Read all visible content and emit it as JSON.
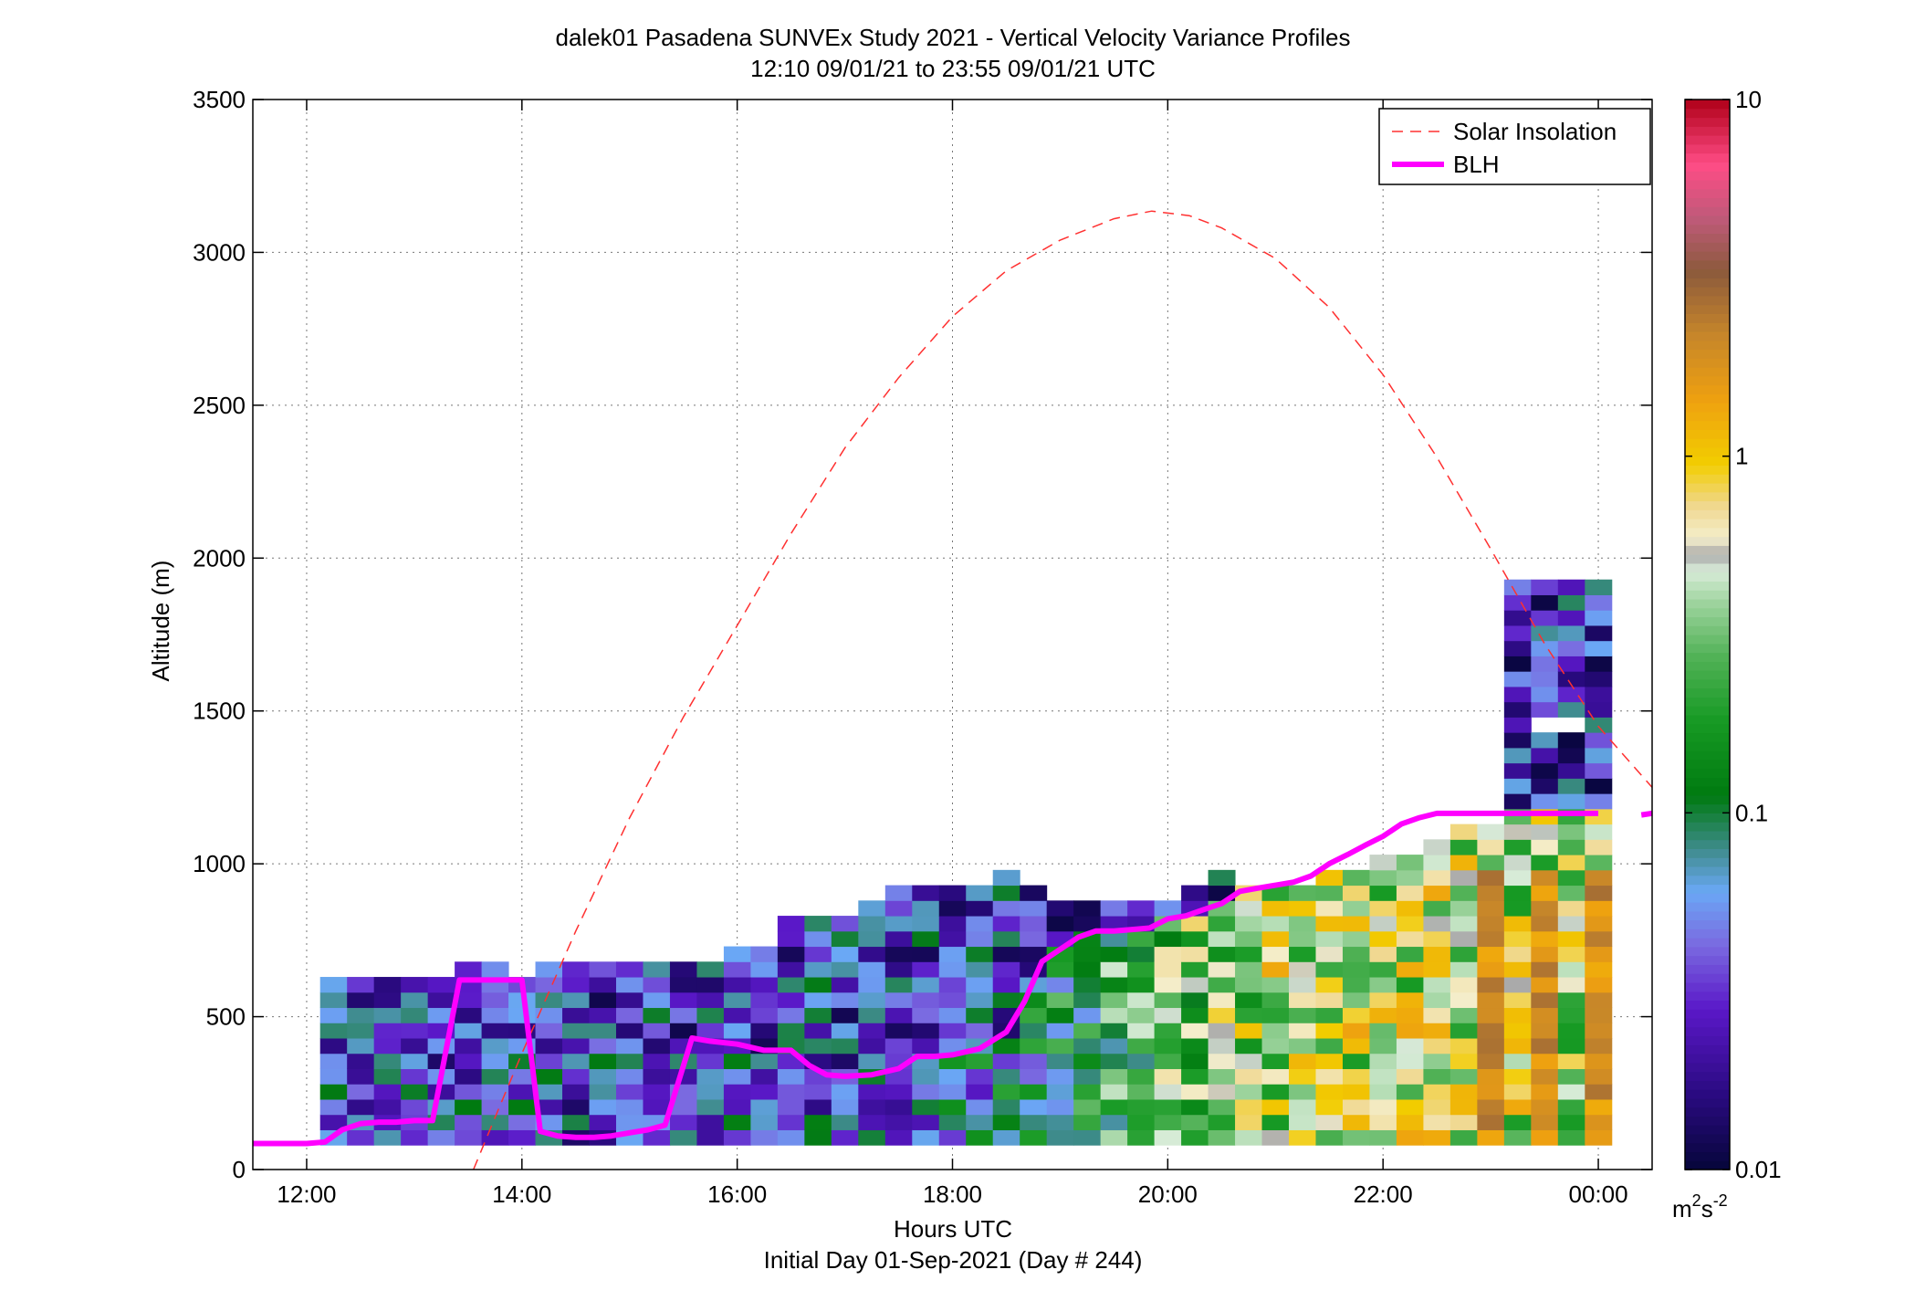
{
  "chart_data": {
    "type": "heatmap",
    "title": "dalek01 Pasadena SUNVEx Study 2021 - Vertical Velocity Variance Profiles",
    "subtitle": "12:10 09/01/21 to 23:55 09/01/21  UTC",
    "xlabel": "Hours UTC",
    "xlabel2": "Initial Day 01-Sep-2021 (Day # 244)",
    "ylabel": "Altitude (m)",
    "xlim": [
      11.5,
      24.5
    ],
    "ylim": [
      0,
      3500
    ],
    "x_ticks": [
      {
        "value": 12,
        "label": "12:00"
      },
      {
        "value": 14,
        "label": "14:00"
      },
      {
        "value": 16,
        "label": "16:00"
      },
      {
        "value": 18,
        "label": "18:00"
      },
      {
        "value": 20,
        "label": "20:00"
      },
      {
        "value": 22,
        "label": "22:00"
      },
      {
        "value": 24,
        "label": "00:00"
      }
    ],
    "y_ticks": [
      0,
      500,
      1000,
      1500,
      2000,
      2500,
      3000,
      3500
    ],
    "grid": true,
    "legend_position": "top-right",
    "legend": [
      {
        "name": "Solar Insolation",
        "style": "dashed",
        "color": "#ff3030"
      },
      {
        "name": "BLH",
        "style": "solid",
        "color": "#ff00ff"
      }
    ],
    "colorbar": {
      "scale": "log",
      "min": 0.01,
      "max": 10,
      "ticks": [
        {
          "value": 0.01,
          "label": "0.01"
        },
        {
          "value": 0.1,
          "label": "0.1"
        },
        {
          "value": 1,
          "label": "1"
        },
        {
          "value": 10,
          "label": "10"
        }
      ],
      "unit_base": "m",
      "unit_sup1": "2",
      "unit_mid": "s",
      "unit_sup2": "-2",
      "stops": [
        {
          "t": 0.0,
          "color": "#06063a"
        },
        {
          "t": 0.07,
          "color": "#2a0a80"
        },
        {
          "t": 0.15,
          "color": "#5a18c8"
        },
        {
          "t": 0.21,
          "color": "#7a6ae0"
        },
        {
          "t": 0.26,
          "color": "#6aa8f5"
        },
        {
          "t": 0.3,
          "color": "#3e8b8b"
        },
        {
          "t": 0.35,
          "color": "#007a10"
        },
        {
          "t": 0.42,
          "color": "#179a24"
        },
        {
          "t": 0.48,
          "color": "#52b257"
        },
        {
          "t": 0.53,
          "color": "#9ed49e"
        },
        {
          "t": 0.56,
          "color": "#d9ecd9"
        },
        {
          "t": 0.575,
          "color": "#aaaaaa"
        },
        {
          "t": 0.59,
          "color": "#f4eecc"
        },
        {
          "t": 0.62,
          "color": "#f0d890"
        },
        {
          "t": 0.66,
          "color": "#f2cd00"
        },
        {
          "t": 0.72,
          "color": "#eea010"
        },
        {
          "t": 0.78,
          "color": "#c6862a"
        },
        {
          "t": 0.84,
          "color": "#8c5a3c"
        },
        {
          "t": 0.89,
          "color": "#c05a7a"
        },
        {
          "t": 0.94,
          "color": "#ff4c86"
        },
        {
          "t": 1.0,
          "color": "#b00018"
        }
      ]
    },
    "variance_grid": {
      "times_hours": [
        12.25,
        12.5,
        12.75,
        13.0,
        13.25,
        13.5,
        13.75,
        14.0,
        14.25,
        14.5,
        14.75,
        15.0,
        15.25,
        15.5,
        15.75,
        16.0,
        16.25,
        16.5,
        16.75,
        17.0,
        17.25,
        17.5,
        17.75,
        18.0,
        18.25,
        18.5,
        18.75,
        19.0,
        19.25,
        19.5,
        19.75,
        20.0,
        20.25,
        20.5,
        20.75,
        21.0,
        21.25,
        21.5,
        21.75,
        22.0,
        22.25,
        22.5,
        22.75,
        23.0,
        23.25,
        23.5,
        23.75,
        24.0
      ],
      "altitude_bin_m": 50,
      "first_altitude_m": 105,
      "profile_tops_m": [
        655,
        655,
        655,
        655,
        655,
        705,
        705,
        655,
        705,
        705,
        705,
        705,
        705,
        705,
        705,
        755,
        755,
        855,
        855,
        855,
        905,
        955,
        955,
        955,
        955,
        1005,
        955,
        905,
        905,
        905,
        905,
        905,
        955,
        1005,
        955,
        955,
        955,
        1005,
        1005,
        1055,
        1055,
        1105,
        1155,
        1155,
        1955,
        1955,
        1955,
        1955
      ]
    },
    "blh_series": {
      "name": "BLH",
      "x_hours": [
        11.5,
        12.0,
        12.17,
        12.33,
        12.5,
        12.67,
        12.83,
        13.0,
        13.17,
        13.42,
        14.0,
        14.17,
        14.33,
        14.5,
        14.67,
        14.83,
        15.0,
        15.17,
        15.33,
        15.58,
        15.75,
        16.0,
        16.25,
        16.5,
        16.67,
        16.83,
        17.0,
        17.25,
        17.5,
        17.67,
        17.83,
        18.0,
        18.25,
        18.5,
        18.67,
        18.83,
        19.0,
        19.17,
        19.33,
        19.5,
        19.67,
        19.83,
        20.0,
        20.17,
        20.33,
        20.5,
        20.67,
        20.83,
        21.0,
        21.17,
        21.33,
        21.5,
        21.67,
        21.83,
        22.0,
        22.17,
        22.33,
        22.5,
        22.67,
        22.83,
        23.0,
        23.17,
        23.33,
        23.5,
        23.67,
        23.83,
        24.0
      ],
      "y_m": [
        85,
        85,
        90,
        130,
        150,
        155,
        155,
        160,
        160,
        620,
        620,
        125,
        110,
        105,
        105,
        110,
        120,
        130,
        145,
        430,
        420,
        410,
        390,
        390,
        340,
        310,
        305,
        310,
        330,
        370,
        370,
        375,
        395,
        450,
        550,
        680,
        720,
        760,
        780,
        780,
        785,
        790,
        820,
        830,
        850,
        870,
        910,
        920,
        930,
        940,
        960,
        1000,
        1030,
        1060,
        1090,
        1130,
        1150,
        1165,
        1165,
        1165,
        1165,
        1165,
        1165,
        1165,
        1165,
        1165,
        1165
      ],
      "extension_x_hours": [
        24.4,
        24.5
      ],
      "extension_y_m": [
        1160,
        1165
      ]
    },
    "solar_series": {
      "name": "Solar Insolation",
      "x_hours": [
        13.55,
        13.75,
        14.0,
        14.5,
        15.0,
        15.5,
        16.0,
        16.5,
        17.0,
        17.5,
        18.0,
        18.5,
        19.0,
        19.5,
        19.85,
        20.2,
        20.5,
        21.0,
        21.5,
        22.0,
        22.5,
        23.0,
        23.5,
        24.0,
        24.5
      ],
      "y_m": [
        0,
        170,
        380,
        780,
        1150,
        1480,
        1780,
        2080,
        2360,
        2590,
        2790,
        2940,
        3040,
        3110,
        3135,
        3120,
        3080,
        2980,
        2820,
        2600,
        2330,
        2030,
        1720,
        1450,
        1250
      ]
    }
  }
}
